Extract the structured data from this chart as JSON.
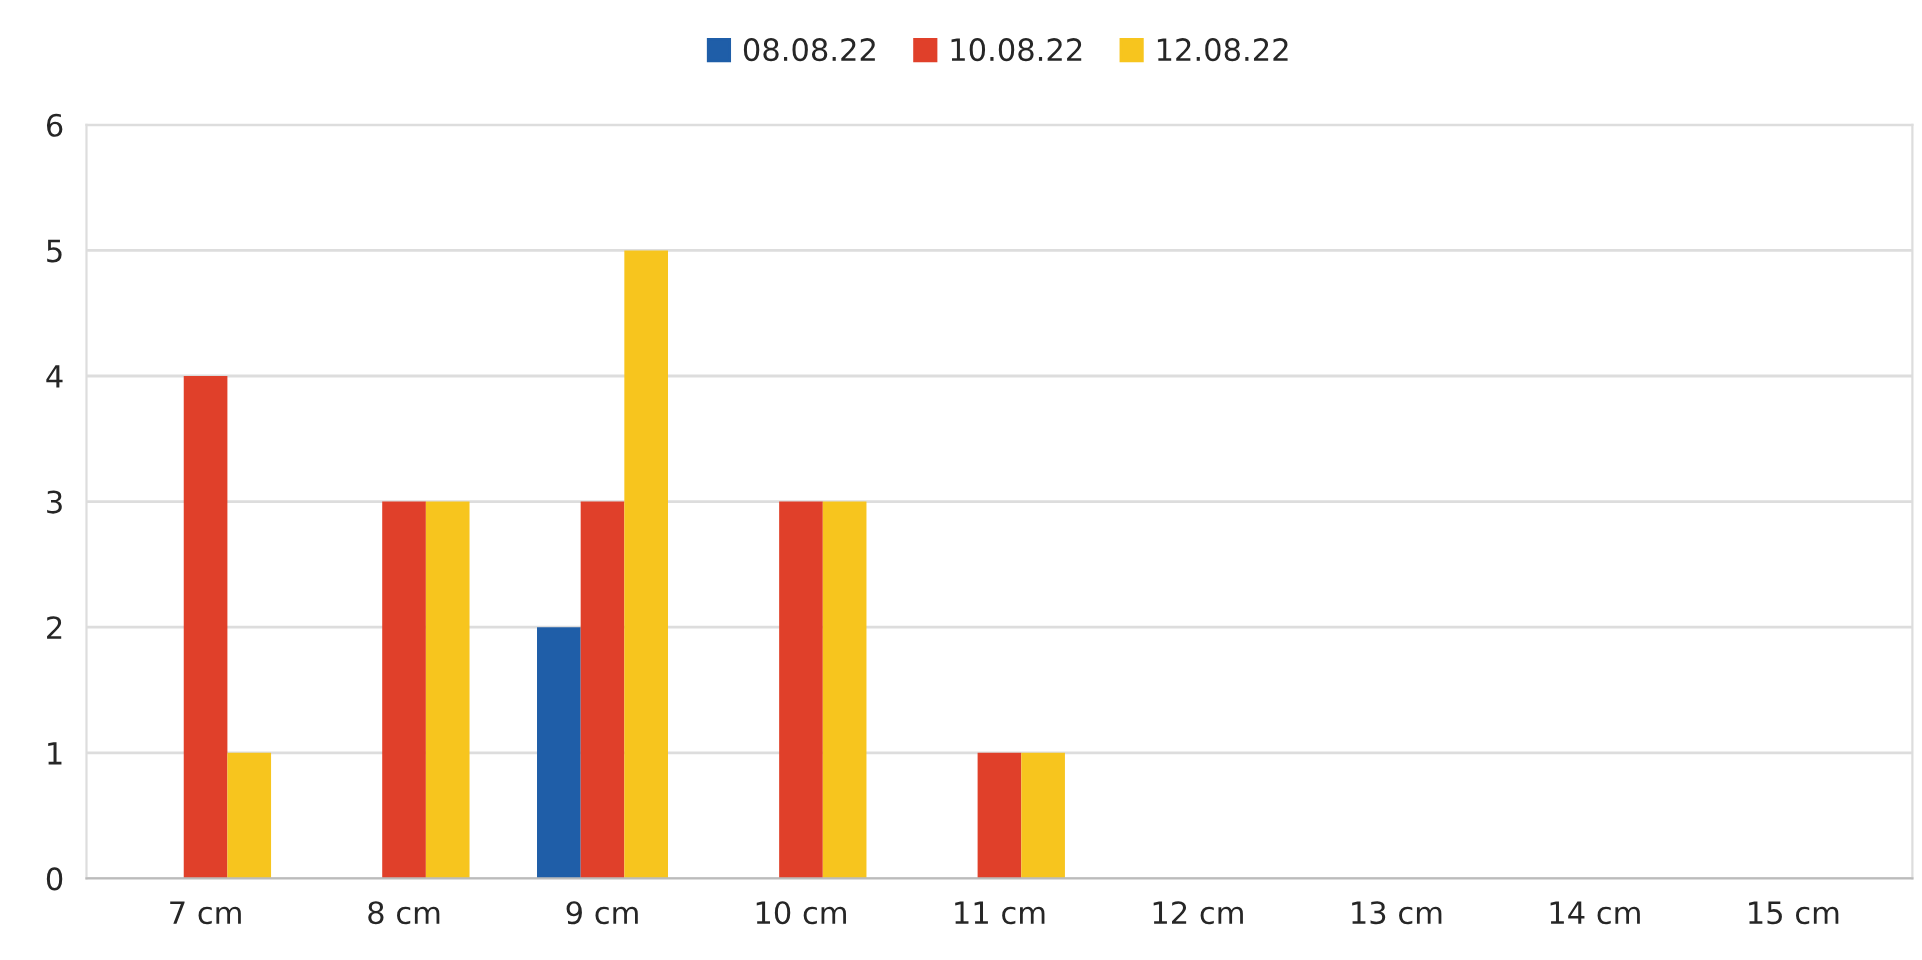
{
  "chart_data": {
    "type": "bar",
    "categories": [
      "7 cm",
      "8 cm",
      "9 cm",
      "10 cm",
      "11 cm",
      "12 cm",
      "13 cm",
      "14 cm",
      "15 cm"
    ],
    "series": [
      {
        "name": "08.08.22",
        "color": "#1f5ea8",
        "values": [
          0,
          0,
          2,
          0,
          0,
          0,
          0,
          0,
          0
        ]
      },
      {
        "name": "10.08.22",
        "color": "#e0402a",
        "values": [
          4,
          3,
          3,
          3,
          1,
          0,
          0,
          0,
          0
        ]
      },
      {
        "name": "12.08.22",
        "color": "#f7c51e",
        "values": [
          1,
          3,
          5,
          3,
          1,
          0,
          0,
          0,
          0
        ]
      }
    ],
    "ylim": [
      0,
      6
    ],
    "yticks": [
      0,
      1,
      2,
      3,
      4,
      5,
      6
    ],
    "grid": "y",
    "legend": "top"
  }
}
